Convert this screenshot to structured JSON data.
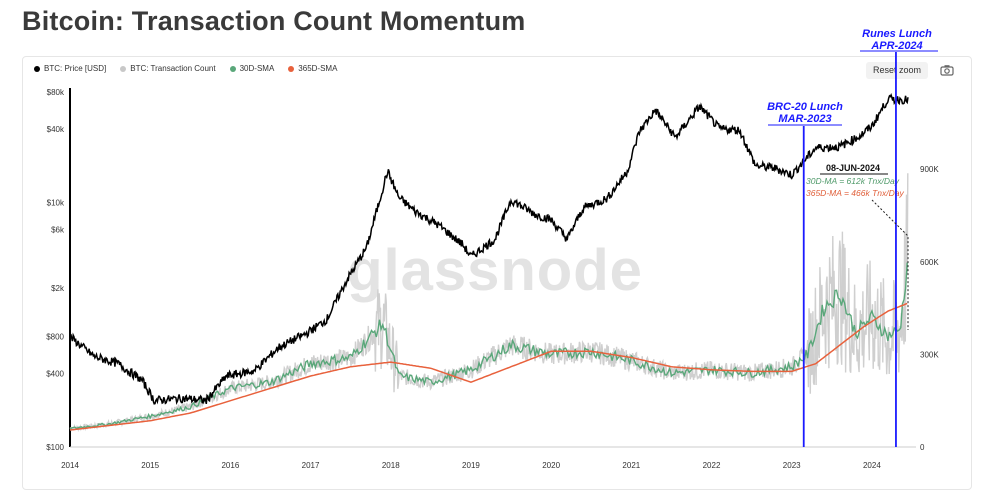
{
  "title": "Bitcoin: Transaction Count Momentum",
  "toolbar": {
    "reset_label": "Reset zoom",
    "camera_icon": "camera-icon"
  },
  "legend": [
    {
      "label": "BTC: Price [USD]",
      "color": "#000000"
    },
    {
      "label": "BTC: Transaction Count",
      "color": "#c8c8c8"
    },
    {
      "label": "30D-SMA",
      "color": "#5aa77a"
    },
    {
      "label": "365D-SMA",
      "color": "#e8613c"
    }
  ],
  "watermark": "glassnode",
  "annotations": {
    "brc20_line1": "BRC-20 Lunch",
    "brc20_line2": "MAR-2023",
    "runes_line1": "Runes Lunch",
    "runes_line2": "APR-2024",
    "date": "08-JUN-2024",
    "ma30": "30D-MA = 612k Tnx/Day",
    "ma365": "365D-MA = 466k Tnx/Day"
  },
  "chart_data": {
    "type": "line",
    "x_ticks": [
      "2014",
      "2015",
      "2016",
      "2017",
      "2018",
      "2019",
      "2020",
      "2021",
      "2022",
      "2023",
      "2024"
    ],
    "y_left_ticks": [
      "$80k",
      "$40k",
      "$10k",
      "$6k",
      "$2k",
      "$800",
      "$400",
      "$100"
    ],
    "y_left_scale": "log",
    "y_left_range": [
      100,
      80000
    ],
    "y_right_ticks": [
      "900K",
      "600K",
      "300K",
      "0"
    ],
    "y_right_range": [
      0,
      1150000
    ],
    "series": [
      {
        "name": "BTC: Price [USD]",
        "color": "#000000",
        "x": [
          2014.0,
          2014.3,
          2014.6,
          2014.9,
          2015.05,
          2015.4,
          2015.7,
          2015.95,
          2016.3,
          2016.6,
          2016.95,
          2017.2,
          2017.45,
          2017.7,
          2017.96,
          2018.1,
          2018.3,
          2018.6,
          2018.9,
          2019.0,
          2019.3,
          2019.5,
          2019.8,
          2020.0,
          2020.2,
          2020.4,
          2020.7,
          2020.95,
          2021.1,
          2021.3,
          2021.55,
          2021.85,
          2022.1,
          2022.35,
          2022.55,
          2022.8,
          2023.0,
          2023.3,
          2023.6,
          2023.85,
          2024.0,
          2024.2,
          2024.45
        ],
        "y": [
          800,
          550,
          480,
          350,
          240,
          250,
          240,
          380,
          420,
          650,
          850,
          1100,
          2300,
          4300,
          18000,
          11000,
          8500,
          6500,
          4500,
          3600,
          5000,
          10500,
          8000,
          7200,
          5000,
          9000,
          10800,
          18000,
          38000,
          57000,
          34000,
          61000,
          40000,
          39000,
          20000,
          19000,
          16800,
          28000,
          28500,
          35000,
          42000,
          70000,
          69000
        ]
      },
      {
        "name": "30D-SMA",
        "color": "#5aa77a",
        "x": [
          2014.0,
          2014.5,
          2015.0,
          2015.5,
          2016.0,
          2016.5,
          2017.0,
          2017.5,
          2017.9,
          2018.1,
          2018.5,
          2019.0,
          2019.5,
          2020.0,
          2020.5,
          2021.0,
          2021.5,
          2022.0,
          2022.5,
          2023.0,
          2023.2,
          2023.4,
          2023.6,
          2023.8,
          2024.0,
          2024.2,
          2024.35,
          2024.45
        ],
        "y": [
          60000,
          75000,
          100000,
          130000,
          190000,
          210000,
          270000,
          290000,
          400000,
          230000,
          210000,
          250000,
          330000,
          300000,
          310000,
          280000,
          240000,
          250000,
          240000,
          260000,
          300000,
          450000,
          500000,
          370000,
          420000,
          360000,
          380000,
          612000
        ]
      },
      {
        "name": "365D-SMA",
        "color": "#e8613c",
        "x": [
          2014.0,
          2014.5,
          2015.0,
          2015.5,
          2016.0,
          2016.5,
          2017.0,
          2017.5,
          2018.0,
          2018.5,
          2019.0,
          2019.5,
          2020.0,
          2020.5,
          2021.0,
          2021.5,
          2022.0,
          2022.5,
          2023.0,
          2023.3,
          2023.6,
          2023.9,
          2024.2,
          2024.45
        ],
        "y": [
          55000,
          70000,
          85000,
          110000,
          150000,
          190000,
          230000,
          260000,
          275000,
          255000,
          210000,
          260000,
          310000,
          310000,
          290000,
          260000,
          250000,
          245000,
          245000,
          270000,
          330000,
          390000,
          440000,
          466000
        ]
      }
    ],
    "markers": [
      {
        "label": "BRC-20 Lunch MAR-2023",
        "x": 2023.15
      },
      {
        "label": "Runes Lunch APR-2024",
        "x": 2024.3
      }
    ]
  }
}
